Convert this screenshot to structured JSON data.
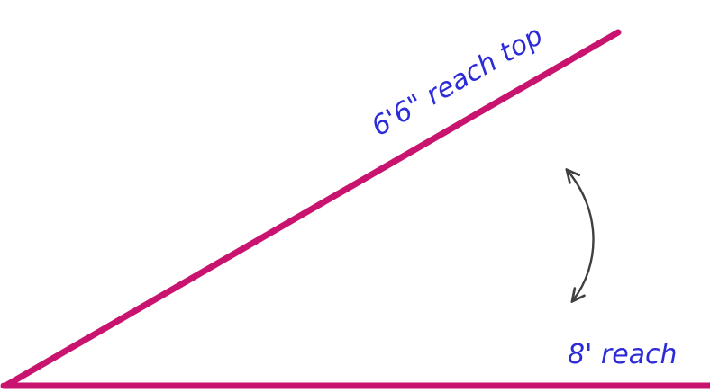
{
  "diagram": {
    "upper_label": "6'6\" reach top",
    "lower_label": "8' reach",
    "colors": {
      "line": "#c8146e",
      "text": "#2b2bd8",
      "arrow": "#404040"
    },
    "icons": {
      "angle_arrow": "double-headed-curved-arrow-icon"
    }
  }
}
